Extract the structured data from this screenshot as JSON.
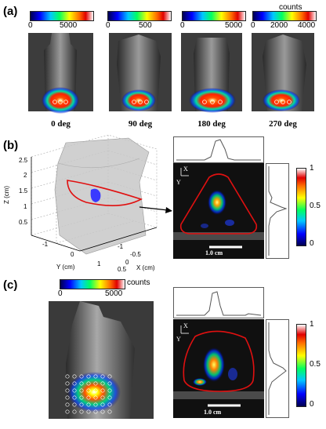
{
  "panel_a": {
    "label": "(a)",
    "counts_label": "counts",
    "colorbars": [
      {
        "min": "0",
        "max": "5000"
      },
      {
        "min": "0",
        "max": "500"
      },
      {
        "min": "0",
        "max": "5000"
      },
      {
        "min": "0",
        "mid": "2000",
        "max": "4000"
      }
    ],
    "views": [
      "0 deg",
      "90 deg",
      "180 deg",
      "270 deg"
    ]
  },
  "panel_b": {
    "label": "(b)",
    "z_axis": "Z (cm)",
    "y_axis": "Y (cm)",
    "x_axis": "X (cm)",
    "z_ticks": [
      "2.5",
      "2",
      "1.5",
      "1",
      "0.5"
    ],
    "y_ticks": [
      "-1",
      "0",
      "1"
    ],
    "x_ticks": [
      "-1",
      "-0.5",
      "0",
      "0.5"
    ],
    "axis_x": "X",
    "axis_y": "Y",
    "scale": "1.0 cm",
    "cbar_ticks": [
      "1",
      "0.5",
      "0"
    ]
  },
  "panel_c": {
    "label": "(c)",
    "counts_label": "counts",
    "cbar_min": "0",
    "cbar_max": "5000",
    "axis_x": "X",
    "axis_y": "Y",
    "scale": "1.0 cm",
    "cbar_ticks": [
      "1",
      "0.5",
      "0"
    ]
  },
  "colors": {
    "contour": "#e01010",
    "lesion": "#3a3aff",
    "surface": "#c8c8c8"
  }
}
